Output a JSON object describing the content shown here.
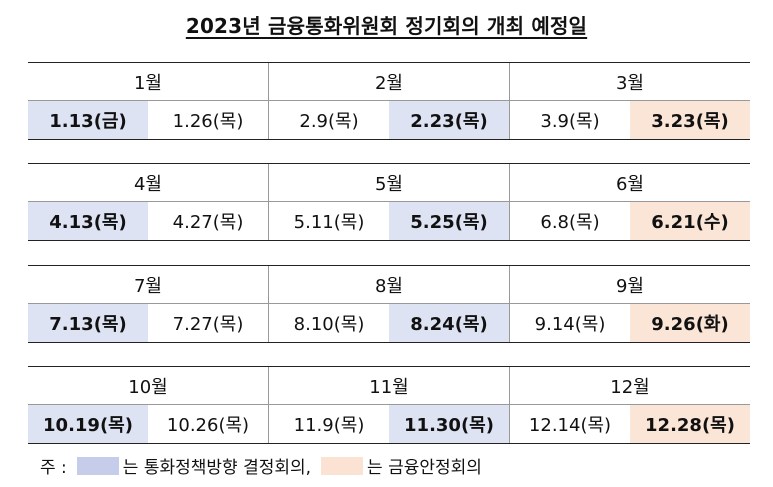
{
  "title": "2023년 금융통화위원회 정기회의 개최 예정일",
  "quarters": [
    {
      "months": [
        "1월",
        "2월",
        "3월"
      ],
      "dates": [
        {
          "text": "1.13(금)",
          "hl": "blue"
        },
        {
          "text": "1.26(목)",
          "hl": ""
        },
        {
          "text": "2.9(목)",
          "hl": ""
        },
        {
          "text": "2.23(목)",
          "hl": "blue"
        },
        {
          "text": "3.9(목)",
          "hl": ""
        },
        {
          "text": "3.23(목)",
          "hl": "peach"
        }
      ]
    },
    {
      "months": [
        "4월",
        "5월",
        "6월"
      ],
      "dates": [
        {
          "text": "4.13(목)",
          "hl": "blue"
        },
        {
          "text": "4.27(목)",
          "hl": ""
        },
        {
          "text": "5.11(목)",
          "hl": ""
        },
        {
          "text": "5.25(목)",
          "hl": "blue"
        },
        {
          "text": "6.8(목)",
          "hl": ""
        },
        {
          "text": "6.21(수)",
          "hl": "peach"
        }
      ]
    },
    {
      "months": [
        "7월",
        "8월",
        "9월"
      ],
      "dates": [
        {
          "text": "7.13(목)",
          "hl": "blue"
        },
        {
          "text": "7.27(목)",
          "hl": ""
        },
        {
          "text": "8.10(목)",
          "hl": ""
        },
        {
          "text": "8.24(목)",
          "hl": "blue"
        },
        {
          "text": "9.14(목)",
          "hl": ""
        },
        {
          "text": "9.26(화)",
          "hl": "peach"
        }
      ]
    },
    {
      "months": [
        "10월",
        "11월",
        "12월"
      ],
      "dates": [
        {
          "text": "10.19(목)",
          "hl": "blue"
        },
        {
          "text": "10.26(목)",
          "hl": ""
        },
        {
          "text": "11.9(목)",
          "hl": ""
        },
        {
          "text": "11.30(목)",
          "hl": "blue"
        },
        {
          "text": "12.14(목)",
          "hl": ""
        },
        {
          "text": "12.28(목)",
          "hl": "peach"
        }
      ]
    }
  ],
  "legend": {
    "prefix": "주 :",
    "blue_label": "는 통화정책방향 결정회의,",
    "peach_label": "는 금융안정회의"
  },
  "colors": {
    "blue": "#dde3f2",
    "peach": "#fbe5d7"
  }
}
